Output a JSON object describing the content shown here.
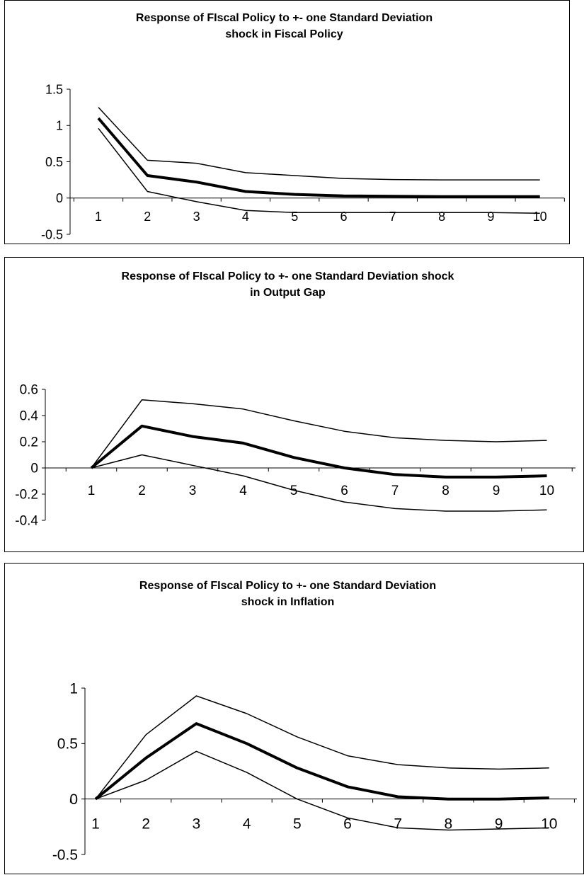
{
  "chart_data": [
    {
      "type": "line",
      "title": "Response of FIscal Policy to +- one Standard Deviation\nshock in Fiscal Policy",
      "categories": [
        "1",
        "2",
        "3",
        "4",
        "5",
        "6",
        "7",
        "8",
        "9",
        "10"
      ],
      "yticks": [
        "1.5",
        "1",
        "0.5",
        "0",
        "-0.5"
      ],
      "ylim": [
        -0.5,
        1.5
      ],
      "series": [
        {
          "values": [
            1.25,
            0.52,
            0.48,
            0.35,
            0.31,
            0.27,
            0.255,
            0.25,
            0.25,
            0.25
          ]
        },
        {
          "values": [
            1.1,
            0.31,
            0.22,
            0.09,
            0.05,
            0.03,
            0.025,
            0.02,
            0.02,
            0.02
          ]
        },
        {
          "values": [
            0.96,
            0.09,
            -0.05,
            -0.17,
            -0.2,
            -0.2,
            -0.2,
            -0.2,
            -0.2,
            -0.21
          ]
        }
      ],
      "grid": false,
      "legend": "none"
    },
    {
      "type": "line",
      "title": "Response of FIscal Policy to +- one Standard Deviation shock\nin Output Gap",
      "categories": [
        "1",
        "2",
        "3",
        "4",
        "5",
        "6",
        "7",
        "8",
        "9",
        "10"
      ],
      "yticks": [
        "0.6",
        "0.4",
        "0.2",
        "0",
        "-0.2",
        "-0.4"
      ],
      "ylim": [
        -0.4,
        0.6
      ],
      "series": [
        {
          "values": [
            0,
            0.52,
            0.49,
            0.45,
            0.36,
            0.28,
            0.23,
            0.21,
            0.2,
            0.21
          ]
        },
        {
          "values": [
            0,
            0.32,
            0.24,
            0.19,
            0.08,
            0.0,
            -0.05,
            -0.07,
            -0.07,
            -0.06
          ]
        },
        {
          "values": [
            0,
            0.1,
            0.02,
            -0.06,
            -0.17,
            -0.26,
            -0.31,
            -0.33,
            -0.33,
            -0.32
          ]
        }
      ],
      "grid": false,
      "legend": "none"
    },
    {
      "type": "line",
      "title": "Response of FIscal Policy to +- one Standard Deviation\nshock in Inflation",
      "categories": [
        "1",
        "2",
        "3",
        "4",
        "5",
        "6",
        "7",
        "8",
        "9",
        "10"
      ],
      "yticks": [
        "1",
        "0.5",
        "0",
        "-0.5"
      ],
      "ylim": [
        -0.5,
        1
      ],
      "series": [
        {
          "values": [
            0,
            0.58,
            0.93,
            0.77,
            0.56,
            0.39,
            0.31,
            0.28,
            0.27,
            0.28
          ]
        },
        {
          "values": [
            0,
            0.37,
            0.68,
            0.5,
            0.28,
            0.11,
            0.02,
            0.0,
            0.0,
            0.01
          ]
        },
        {
          "values": [
            0,
            0.17,
            0.43,
            0.24,
            0.0,
            -0.17,
            -0.26,
            -0.28,
            -0.27,
            -0.26
          ]
        }
      ],
      "grid": false,
      "legend": "none"
    }
  ]
}
